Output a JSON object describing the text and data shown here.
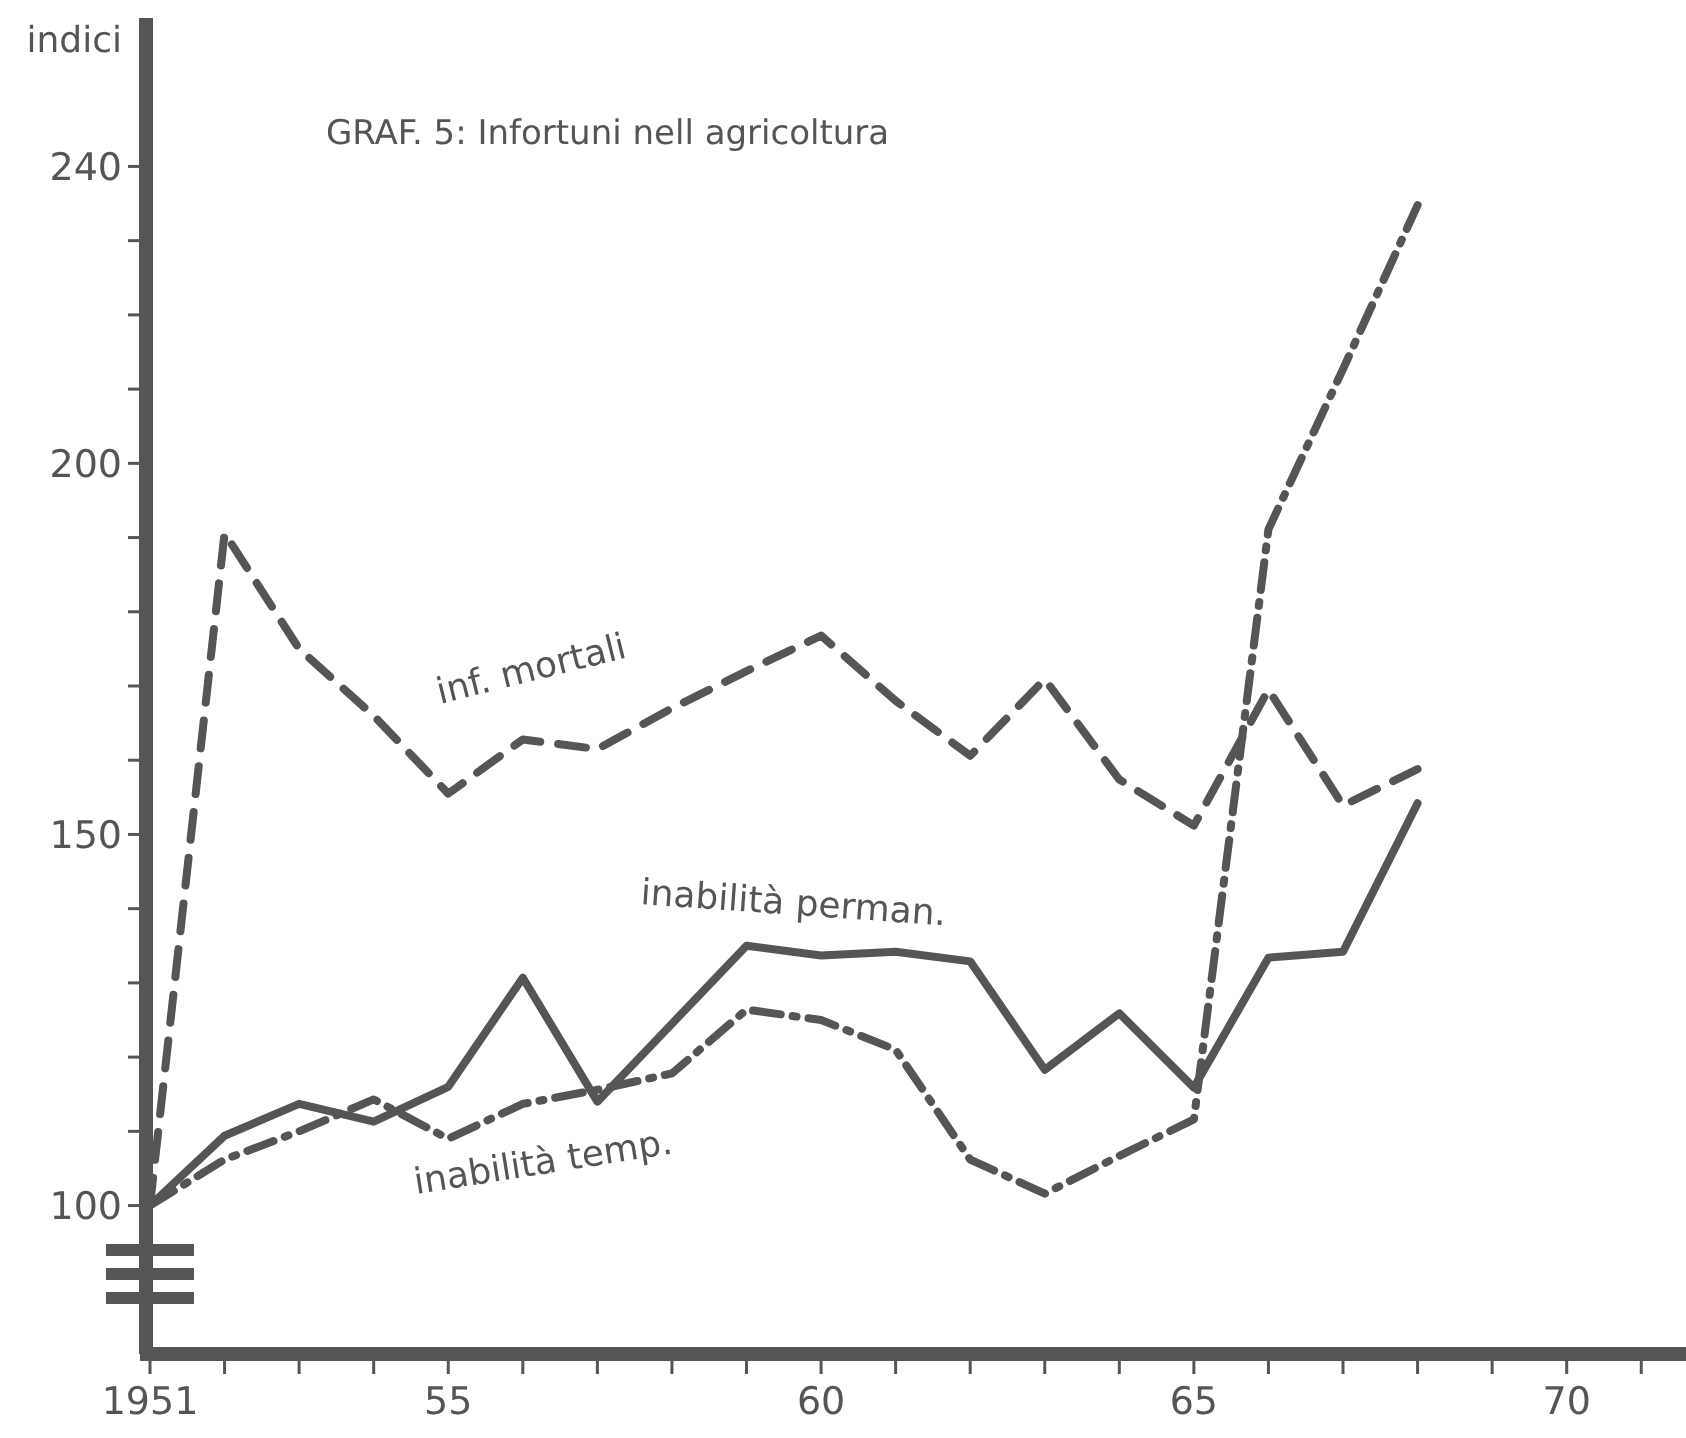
{
  "chart_data": {
    "type": "line",
    "title": "GRAF. 5: Infortuni nell agricoltura",
    "ylabel": "indici",
    "x": [
      1951,
      1952,
      1953,
      1954,
      1955,
      1956,
      1957,
      1958,
      1959,
      1960,
      1961,
      1962,
      1963,
      1964,
      1965,
      1966,
      1967,
      1968
    ],
    "series": [
      {
        "name": "inf. mortali",
        "color": "#555555",
        "line_style": "dashed",
        "values": [
          100,
          190.6,
          175,
          166,
          155.5,
          162.8,
          161.5,
          167,
          172,
          176.8,
          168,
          160.6,
          170.9,
          157.4,
          151.2,
          169.5,
          153.9,
          158.8
        ]
      },
      {
        "name": "inabilità perman.",
        "color": "#555555",
        "line_style": "solid",
        "values": [
          100,
          109.4,
          113.7,
          111.3,
          116,
          130.7,
          114,
          124.5,
          135,
          133.7,
          134.2,
          132.9,
          118.3,
          125.9,
          115.9,
          133.4,
          134.2,
          154.2
        ]
      },
      {
        "name": "inabilità temp.",
        "color": "#555555",
        "line_style": "dashdot",
        "values": [
          100,
          106.2,
          110,
          114.3,
          109,
          113.7,
          115.6,
          117.8,
          126.4,
          125,
          121,
          106.2,
          101.6,
          106.7,
          111.6,
          191.1,
          212.7,
          234.8
        ]
      }
    ],
    "xlim": [
      1951,
      1971.6
    ],
    "xticks": [
      {
        "value": 1951,
        "label": "1951"
      },
      {
        "value": 1952,
        "label": null
      },
      {
        "value": 1953,
        "label": null
      },
      {
        "value": 1954,
        "label": null
      },
      {
        "value": 1955,
        "label": "55"
      },
      {
        "value": 1956,
        "label": null
      },
      {
        "value": 1957,
        "label": null
      },
      {
        "value": 1958,
        "label": null
      },
      {
        "value": 1959,
        "label": null
      },
      {
        "value": 1960,
        "label": "60"
      },
      {
        "value": 1961,
        "label": null
      },
      {
        "value": 1962,
        "label": null
      },
      {
        "value": 1963,
        "label": null
      },
      {
        "value": 1964,
        "label": null
      },
      {
        "value": 1965,
        "label": "65"
      },
      {
        "value": 1966,
        "label": null
      },
      {
        "value": 1967,
        "label": null
      },
      {
        "value": 1968,
        "label": null
      },
      {
        "value": 1969,
        "label": null
      },
      {
        "value": 1970,
        "label": "70"
      },
      {
        "value": 1971,
        "label": null
      }
    ],
    "ylim": [
      80,
      260
    ],
    "yticks": [
      100,
      {
        "value": 110,
        "label": null
      },
      {
        "value": 120,
        "label": null
      },
      {
        "value": 130,
        "label": null
      },
      {
        "value": 140,
        "label": null
      },
      150,
      {
        "value": 160,
        "label": null
      },
      {
        "value": 170,
        "label": null
      },
      {
        "value": 180,
        "label": null
      },
      {
        "value": 190,
        "label": null
      },
      200,
      {
        "value": 210,
        "label": null
      },
      {
        "value": 220,
        "label": null
      },
      {
        "value": 230,
        "label": null
      },
      240
    ],
    "grid": false,
    "marker": "none"
  }
}
